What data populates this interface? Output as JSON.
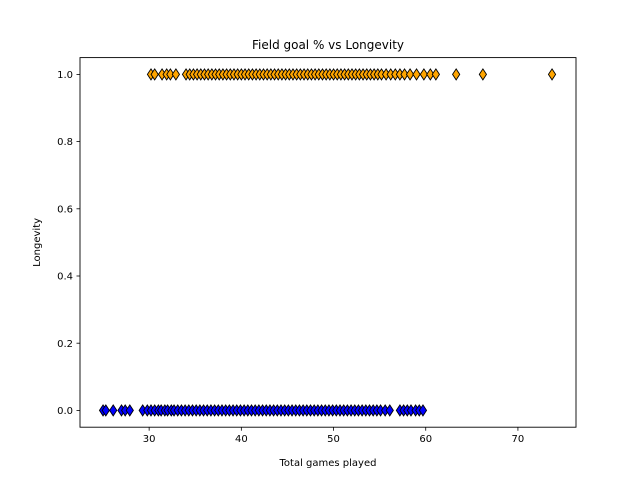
{
  "chart_data": {
    "type": "scatter",
    "title": "Field goal % vs Longevity",
    "xlabel": "Total games played",
    "ylabel": "Longevity",
    "xlim": [
      22.5,
      76.3
    ],
    "ylim": [
      -0.05,
      1.05
    ],
    "xticks": [
      30,
      40,
      50,
      60,
      70
    ],
    "yticks": [
      0.0,
      0.2,
      0.4,
      0.6,
      0.8,
      1.0
    ],
    "xtick_labels": [
      "30",
      "40",
      "50",
      "60",
      "70"
    ],
    "ytick_labels": [
      "0.0",
      "0.2",
      "0.4",
      "0.6",
      "0.8",
      "1.0"
    ],
    "grid": false,
    "marker": "diamond",
    "series": [
      {
        "color": "#0000ff",
        "y": 0,
        "x": [
          25.0,
          25.3,
          26.1,
          27.0,
          27.4,
          27.9,
          29.3,
          29.8,
          30.2,
          30.6,
          31.0,
          31.3,
          31.7,
          32.0,
          32.4,
          32.7,
          33.1,
          33.5,
          33.9,
          34.3,
          34.7,
          35.1,
          35.5,
          35.9,
          36.3,
          36.7,
          37.1,
          37.5,
          37.9,
          38.3,
          38.7,
          39.1,
          39.5,
          39.9,
          40.3,
          40.7,
          41.1,
          41.5,
          41.9,
          42.3,
          42.7,
          43.1,
          43.5,
          43.9,
          44.3,
          44.7,
          45.1,
          45.5,
          45.9,
          46.3,
          46.7,
          47.1,
          47.5,
          47.9,
          48.3,
          48.7,
          49.1,
          49.5,
          49.9,
          50.3,
          50.7,
          51.1,
          51.5,
          51.9,
          52.3,
          52.7,
          53.1,
          53.5,
          53.9,
          54.3,
          54.7,
          55.1,
          55.6,
          56.1,
          57.2,
          57.6,
          58.0,
          58.4,
          58.9,
          59.3,
          59.7
        ]
      },
      {
        "color": "#ffa500",
        "y": 1,
        "x": [
          30.2,
          30.6,
          31.4,
          31.9,
          32.3,
          32.9,
          34.0,
          34.4,
          34.8,
          35.2,
          35.6,
          36.0,
          36.4,
          36.8,
          37.2,
          37.6,
          38.0,
          38.4,
          38.8,
          39.2,
          39.6,
          40.0,
          40.4,
          40.8,
          41.2,
          41.6,
          42.0,
          42.4,
          42.8,
          43.2,
          43.6,
          44.0,
          44.4,
          44.8,
          45.2,
          45.6,
          46.0,
          46.4,
          46.8,
          47.2,
          47.6,
          48.0,
          48.4,
          48.8,
          49.2,
          49.6,
          50.0,
          50.4,
          50.8,
          51.2,
          51.6,
          52.0,
          52.4,
          52.8,
          53.2,
          53.6,
          54.0,
          54.4,
          54.8,
          55.2,
          55.7,
          56.2,
          56.7,
          57.2,
          57.7,
          58.3,
          59.0,
          59.8,
          60.5,
          61.1,
          63.3,
          66.2,
          73.7
        ]
      }
    ]
  }
}
